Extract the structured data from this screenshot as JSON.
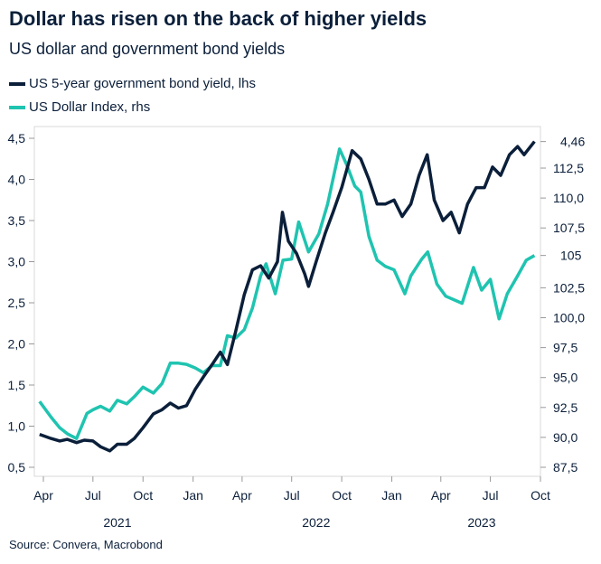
{
  "title": "Dollar has risen on the back of higher yields",
  "subtitle": "US dollar and government bond yields",
  "source": "Source: Convera, Macrobond",
  "chart_data": {
    "type": "line",
    "xlabel": "",
    "ylabel": "",
    "x_ticks": [
      "Apr",
      "Jul",
      "Oct",
      "Jan",
      "Apr",
      "Jul",
      "Oct",
      "Jan",
      "Apr",
      "Jul",
      "Oct"
    ],
    "x_tick_dates": [
      "2021-04-01",
      "2021-07-01",
      "2021-10-01",
      "2022-01-01",
      "2022-04-01",
      "2022-07-01",
      "2022-10-01",
      "2023-01-01",
      "2023-04-01",
      "2023-07-01",
      "2023-10-01"
    ],
    "year_labels": [
      "2021",
      "2022",
      "2023"
    ],
    "year_label_dates": [
      "2021-08-15",
      "2022-08-15",
      "2023-06-15"
    ],
    "xlim": [
      "2021-03-20",
      "2023-10-05"
    ],
    "y_left": {
      "ticks": [
        "0,5",
        "1,0",
        "1,5",
        "2,0",
        "2,5",
        "3,0",
        "3,5",
        "4,0",
        "4,5"
      ],
      "tick_values": [
        0.5,
        1,
        1.5,
        2,
        2.5,
        3,
        3.5,
        4,
        4.5
      ],
      "ylim": [
        0.4,
        4.6
      ]
    },
    "y_right": {
      "ticks": [
        "87,5",
        "90,0",
        "92,5",
        "95,0",
        "97,5",
        "100,0",
        "102,5",
        "107,5",
        "110,0",
        "112,5"
      ],
      "tick_values": [
        87.5,
        90,
        92.5,
        95,
        97.5,
        100,
        102.5,
        107.5,
        110,
        112.5
      ]
    },
    "grid": false,
    "legend_placement": "top-left",
    "series": [
      {
        "name": "US 5-year government bond yield, lhs",
        "axis": "left",
        "color": "#0b1f3a",
        "last_label": "4,46",
        "x": [
          "2021-03-25",
          "2021-04-15",
          "2021-05-01",
          "2021-05-15",
          "2021-06-01",
          "2021-06-15",
          "2021-07-01",
          "2021-07-15",
          "2021-08-01",
          "2021-08-15",
          "2021-09-01",
          "2021-09-15",
          "2021-10-01",
          "2021-10-20",
          "2021-11-05",
          "2021-11-20",
          "2021-12-05",
          "2021-12-20",
          "2022-01-05",
          "2022-01-20",
          "2022-02-05",
          "2022-02-20",
          "2022-03-05",
          "2022-03-20",
          "2022-04-05",
          "2022-04-20",
          "2022-05-05",
          "2022-05-20",
          "2022-06-05",
          "2022-06-14",
          "2022-06-25",
          "2022-07-10",
          "2022-07-25",
          "2022-08-01",
          "2022-08-15",
          "2022-09-01",
          "2022-09-15",
          "2022-10-01",
          "2022-10-20",
          "2022-11-05",
          "2022-11-20",
          "2022-12-05",
          "2022-12-20",
          "2023-01-05",
          "2023-01-20",
          "2023-02-05",
          "2023-02-20",
          "2023-03-07",
          "2023-03-20",
          "2023-04-05",
          "2023-04-20",
          "2023-05-05",
          "2023-05-20",
          "2023-06-05",
          "2023-06-20",
          "2023-07-05",
          "2023-07-20",
          "2023-08-05",
          "2023-08-20",
          "2023-09-01",
          "2023-09-20"
        ],
        "values": [
          0.9,
          0.85,
          0.82,
          0.84,
          0.8,
          0.83,
          0.82,
          0.75,
          0.7,
          0.78,
          0.78,
          0.85,
          0.98,
          1.15,
          1.2,
          1.28,
          1.22,
          1.25,
          1.45,
          1.6,
          1.75,
          1.9,
          1.75,
          2.15,
          2.6,
          2.9,
          2.95,
          2.8,
          3.0,
          3.6,
          3.25,
          3.1,
          2.85,
          2.7,
          3.0,
          3.35,
          3.6,
          3.9,
          4.35,
          4.25,
          4.0,
          3.7,
          3.7,
          3.75,
          3.55,
          3.7,
          4.05,
          4.3,
          3.75,
          3.5,
          3.6,
          3.35,
          3.7,
          3.9,
          3.9,
          4.15,
          4.05,
          4.3,
          4.4,
          4.3,
          4.46
        ]
      },
      {
        "name": "US Dollar Index, rhs",
        "axis": "right",
        "color": "#1fc4b0",
        "last_label": "105",
        "x": [
          "2021-03-25",
          "2021-04-15",
          "2021-05-01",
          "2021-05-15",
          "2021-06-01",
          "2021-06-20",
          "2021-07-01",
          "2021-07-15",
          "2021-08-01",
          "2021-08-15",
          "2021-09-01",
          "2021-09-15",
          "2021-10-01",
          "2021-10-20",
          "2021-11-05",
          "2021-11-20",
          "2021-12-05",
          "2021-12-20",
          "2022-01-05",
          "2022-01-20",
          "2022-02-05",
          "2022-02-20",
          "2022-03-05",
          "2022-03-20",
          "2022-04-05",
          "2022-04-20",
          "2022-05-05",
          "2022-05-15",
          "2022-06-01",
          "2022-06-15",
          "2022-07-01",
          "2022-07-14",
          "2022-08-01",
          "2022-08-20",
          "2022-09-05",
          "2022-09-27",
          "2022-10-10",
          "2022-10-25",
          "2022-11-05",
          "2022-11-20",
          "2022-12-05",
          "2022-12-20",
          "2023-01-05",
          "2023-01-25",
          "2023-02-05",
          "2023-02-25",
          "2023-03-08",
          "2023-03-25",
          "2023-04-10",
          "2023-04-25",
          "2023-05-10",
          "2023-05-31",
          "2023-06-15",
          "2023-07-01",
          "2023-07-17",
          "2023-08-01",
          "2023-08-20",
          "2023-09-05",
          "2023-09-20"
        ],
        "values": [
          93.0,
          91.7,
          90.8,
          90.3,
          89.9,
          92.0,
          92.3,
          92.6,
          92.2,
          93.1,
          92.8,
          93.4,
          94.2,
          93.7,
          94.5,
          96.2,
          96.2,
          96.1,
          95.8,
          95.4,
          96.0,
          96.0,
          98.5,
          98.3,
          99.0,
          100.8,
          103.5,
          104.5,
          102.0,
          104.8,
          104.9,
          108.0,
          105.5,
          107.0,
          109.5,
          114.1,
          112.8,
          111.0,
          110.5,
          106.8,
          104.8,
          104.3,
          104.0,
          102.0,
          103.5,
          104.9,
          105.5,
          102.8,
          101.8,
          101.5,
          101.2,
          104.2,
          102.3,
          103.2,
          99.9,
          102.0,
          103.5,
          104.8,
          105.2
        ]
      }
    ]
  }
}
